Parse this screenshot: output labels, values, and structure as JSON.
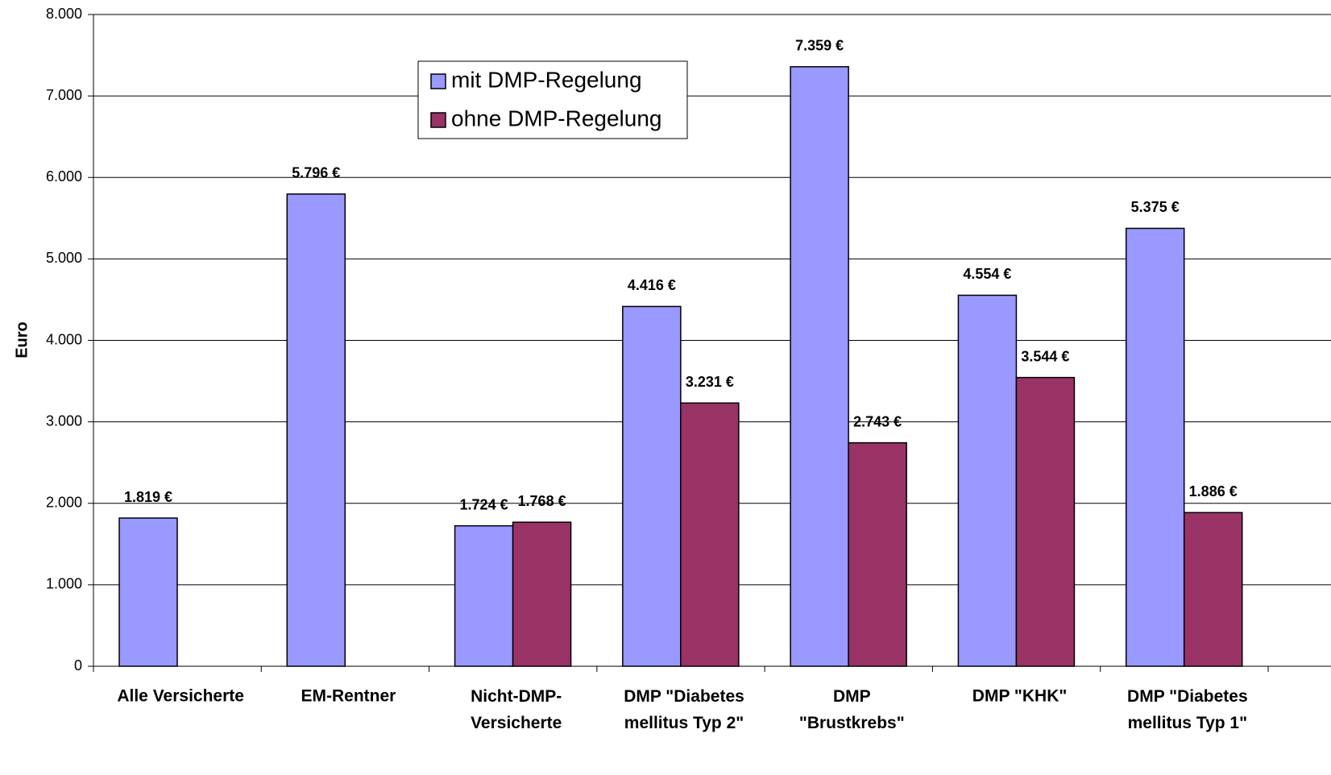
{
  "chart_data": {
    "type": "bar",
    "y_label": "Euro",
    "categories": [
      "Alle Versicherte",
      "EM-Rentner",
      "Nicht-DMP-\nVersicherte",
      "DMP \"Diabetes\nmellitus Typ 2\"",
      "DMP\n\"Brustkrebs\"",
      "DMP \"KHK\"",
      "DMP \"Diabetes\nmellitus Typ 1\""
    ],
    "series": [
      {
        "name": "mit DMP-Regelung",
        "color": "#9999ff",
        "values": [
          1819,
          5796,
          1724,
          4416,
          7359,
          4554,
          5375
        ],
        "value_labels": [
          "1.819 €",
          "5.796 €",
          "1.724 €",
          "4.416 €",
          "7.359 €",
          "4.554 €",
          "5.375 €"
        ]
      },
      {
        "name": "ohne DMP-Regelung",
        "color": "#993366",
        "values": [
          null,
          null,
          1768,
          3231,
          2743,
          3544,
          1886
        ],
        "value_labels": [
          null,
          null,
          "1.768 €",
          "3.231 €",
          "2.743 €",
          "3.544 €",
          "1.886 €"
        ]
      }
    ],
    "ylim": [
      0,
      8000
    ],
    "yticks": [
      0,
      {
        "value": 1000,
        "label": "1.000"
      },
      {
        "value": 2000,
        "label": "2.000"
      },
      {
        "value": 3000,
        "label": "3.000"
      },
      {
        "value": 4000,
        "label": "4.000"
      },
      {
        "value": 5000,
        "label": "5.000"
      },
      {
        "value": 6000,
        "label": "6.000"
      },
      {
        "value": 7000,
        "label": "7.000"
      },
      {
        "value": 8000,
        "label": "8.000"
      }
    ],
    "grid": true
  }
}
